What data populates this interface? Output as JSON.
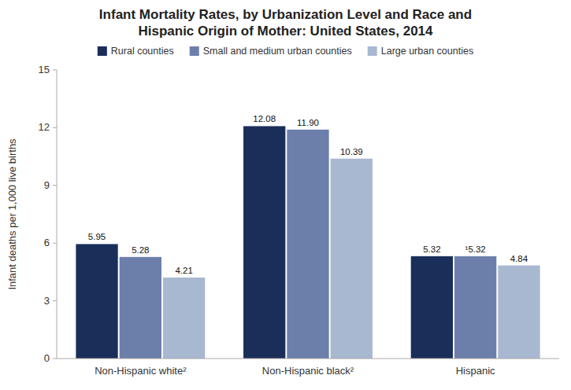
{
  "chart_data": {
    "type": "bar",
    "title": "Infant Mortality Rates, by Urbanization Level and Race and\nHispanic Origin of Mother: United States, 2014",
    "categories": [
      "Non-Hispanic white²",
      "Non-Hispanic black²",
      "Hispanic"
    ],
    "series": [
      {
        "name": "Rural counties",
        "color": "#1a2e5a",
        "values": [
          5.95,
          12.08,
          5.32
        ],
        "value_labels": [
          "5.95",
          "12.08",
          "5.32"
        ]
      },
      {
        "name": "Small and medium urban counties",
        "color": "#6b7faa",
        "values": [
          5.28,
          11.9,
          5.32
        ],
        "value_labels": [
          "5.28",
          "11.90",
          "¹5.32"
        ]
      },
      {
        "name": "Large urban counties",
        "color": "#a8b8d0",
        "values": [
          4.21,
          10.39,
          4.84
        ],
        "value_labels": [
          "4.21",
          "10.39",
          "4.84"
        ]
      }
    ],
    "ylabel": "Infant deaths per 1,000 live births",
    "ylim": [
      0,
      15
    ],
    "yticks": [
      0,
      3,
      6,
      9,
      12,
      15
    ],
    "grid": false,
    "legend": "top",
    "data_labels": true
  }
}
